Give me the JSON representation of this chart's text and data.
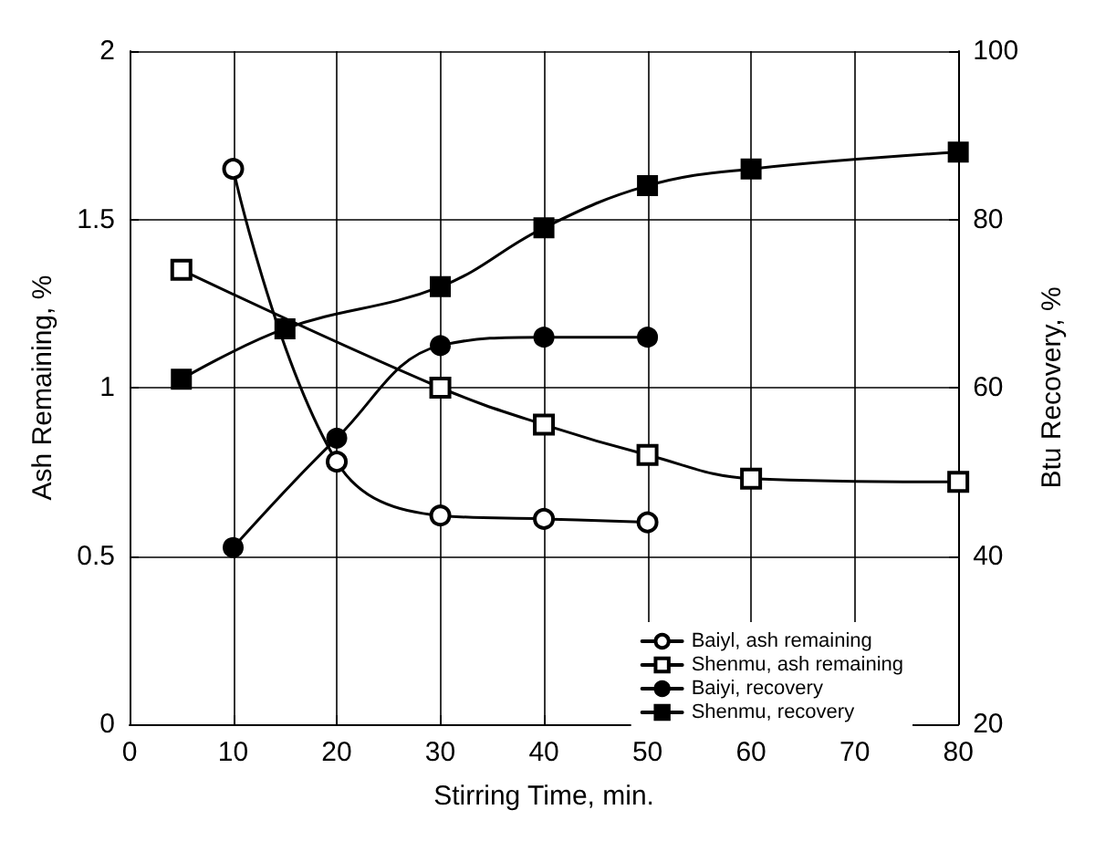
{
  "chart_data": {
    "type": "line",
    "xlabel": "Stirring Time, min.",
    "ylabel": "Ash Remaining, %",
    "y2label": "Btu Recovery, %",
    "xlim": [
      0,
      80
    ],
    "xticks": [
      0,
      10,
      20,
      30,
      40,
      50,
      60,
      70,
      80
    ],
    "ylim": [
      0,
      2
    ],
    "yticks": [
      0,
      0.5,
      1,
      1.5,
      2
    ],
    "y2lim": [
      20,
      100
    ],
    "y2ticks": [
      20,
      40,
      60,
      80,
      100
    ],
    "grid": true,
    "legend": "bottom right",
    "series": [
      {
        "name": "Baiyl, ash remaining",
        "color": "#000000",
        "marker": "circle",
        "x": [
          10,
          20,
          30,
          40,
          50
        ],
        "values": [
          1.65,
          0.78,
          0.62,
          0.61,
          0.6
        ]
      },
      {
        "name": "Shenmu, ash remaining",
        "color": "#000000",
        "marker": "square",
        "x": [
          5,
          30,
          40,
          50,
          60,
          80
        ],
        "values": [
          1.35,
          1.0,
          0.89,
          0.8,
          0.73,
          0.72
        ]
      },
      {
        "name": "Baiyi, recovery",
        "color": "#000000",
        "marker": "circle",
        "axis": "y2",
        "x": [
          10,
          20,
          30,
          40,
          50
        ],
        "values": [
          41,
          54,
          65,
          66,
          66
        ]
      },
      {
        "name": "Shenmu, recovery",
        "color": "#000000",
        "marker": "square",
        "axis": "y2",
        "x": [
          5,
          15,
          30,
          40,
          50,
          60,
          80
        ],
        "values": [
          61,
          67,
          72,
          79,
          84,
          86,
          88
        ]
      }
    ]
  }
}
